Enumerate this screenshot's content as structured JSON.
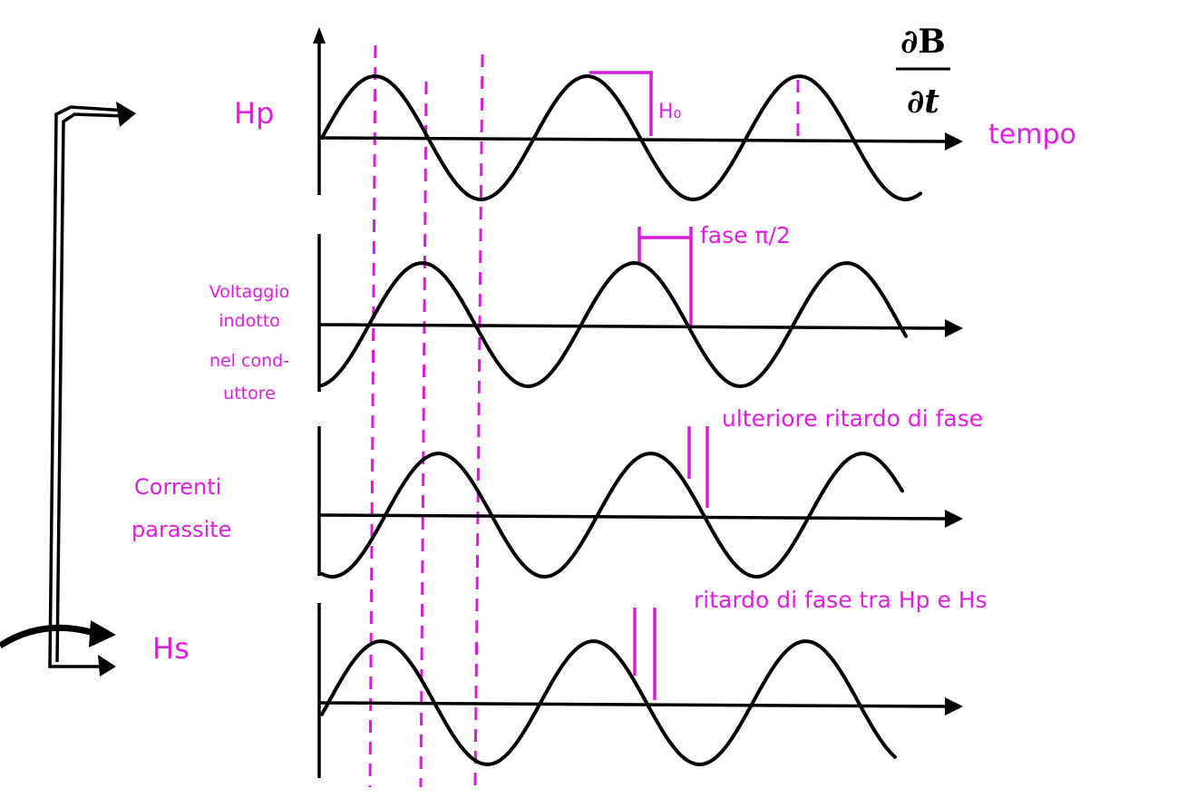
{
  "header": {
    "numerator": "∂B",
    "denominator": "∂t"
  },
  "rows": [
    {
      "label_lines": [
        "Hp"
      ],
      "annotations": [
        "H₀",
        "tempo"
      ]
    },
    {
      "label_lines": [
        "Voltaggio",
        "indotto",
        "nel cond-",
        "uttore"
      ],
      "annotations": [
        "fase π/2"
      ]
    },
    {
      "label_lines": [
        "Correnti",
        "parassite"
      ],
      "annotations": [
        "ulteriore ritardo di fase"
      ]
    },
    {
      "label_lines": [
        "Hs"
      ],
      "annotations": [
        "ritardo di fase tra Hp e Hs"
      ]
    }
  ]
}
